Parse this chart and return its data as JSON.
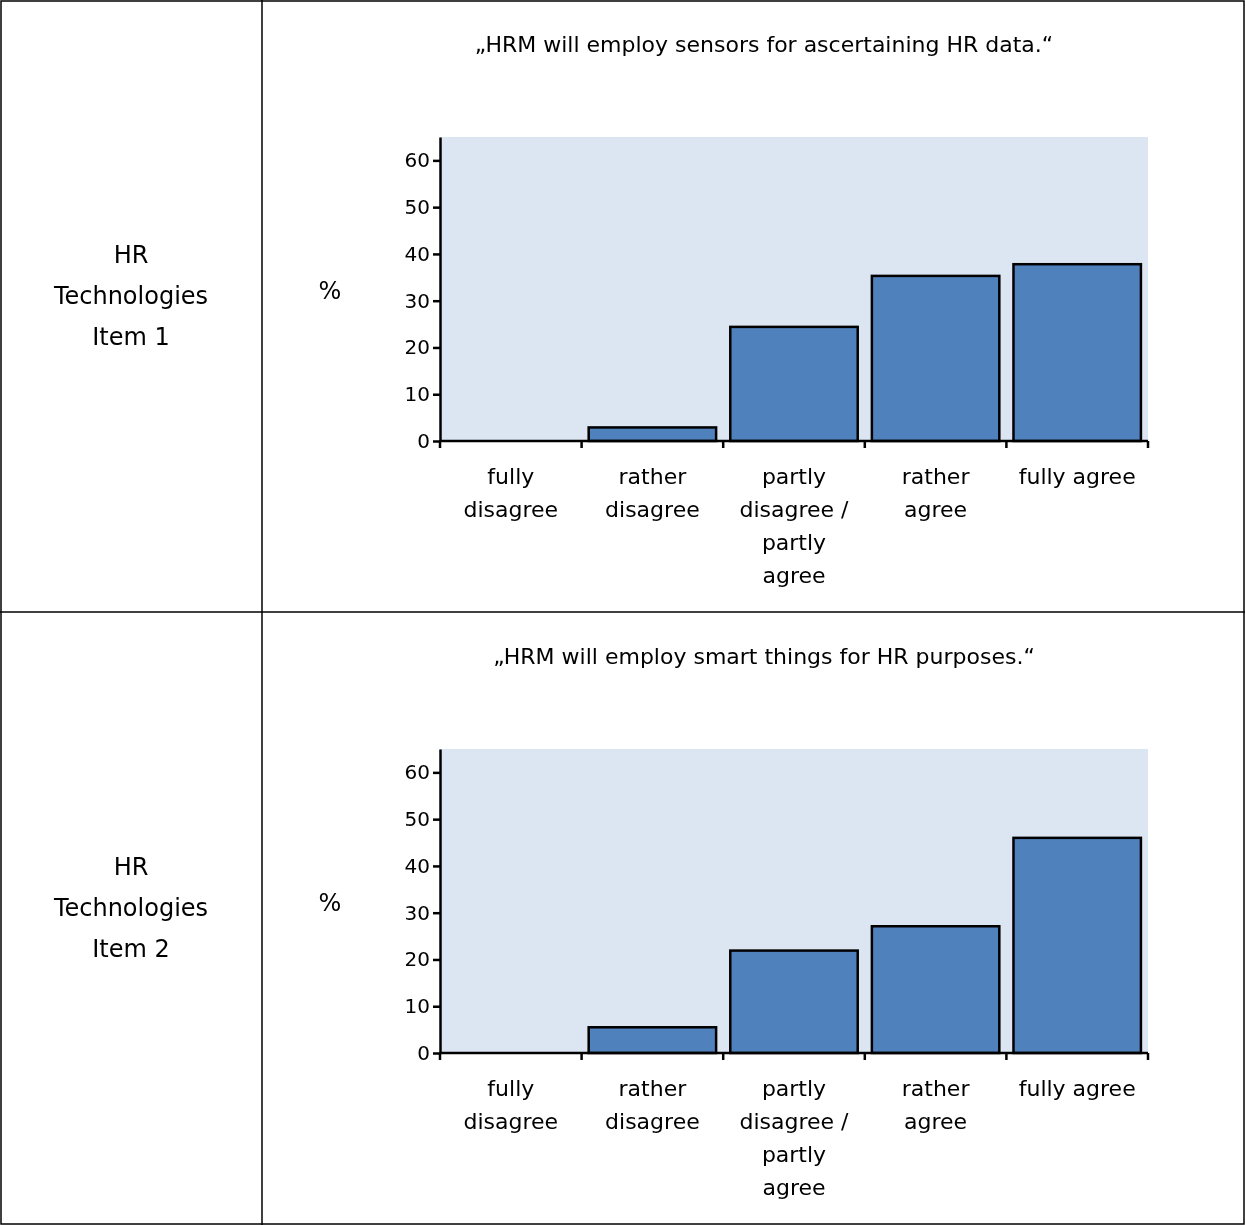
{
  "chart_data": [
    {
      "type": "bar",
      "title": "„HRM will employ sensors for ascertaining HR data.“",
      "ylabel": "%",
      "annotations": [
        "HR Technologies Item 1"
      ],
      "categories": [
        "fully disagree",
        "rather disagree",
        "partly disagree / partly agree",
        "rather agree",
        "fully agree"
      ],
      "values": [
        0,
        2.9,
        24.4,
        35.3,
        37.8
      ],
      "color": "#4f81bd",
      "ylim": [
        0,
        65
      ],
      "yticks": [
        0,
        10,
        20,
        30,
        40,
        50,
        60
      ],
      "grid": false
    },
    {
      "type": "bar",
      "title": "„HRM will employ smart things for HR purposes.“",
      "ylabel": "%",
      "annotations": [
        "HR Technologies Item 2"
      ],
      "categories": [
        "fully disagree",
        "rather disagree",
        "partly disagree / partly agree",
        "rather agree",
        "fully agree"
      ],
      "values": [
        0,
        5.5,
        21.9,
        27.1,
        46
      ],
      "color": "#4f81bd",
      "ylim": [
        0,
        65
      ],
      "yticks": [
        0,
        10,
        20,
        30,
        40,
        50,
        60
      ],
      "grid": false
    }
  ]
}
